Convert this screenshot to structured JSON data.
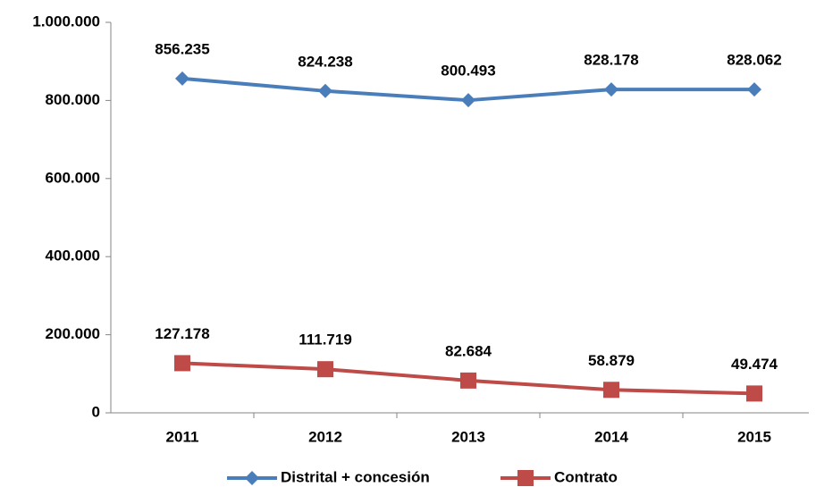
{
  "chart_data": {
    "type": "line",
    "categories": [
      "2011",
      "2012",
      "2013",
      "2014",
      "2015"
    ],
    "series": [
      {
        "name": "Distrital + concesión",
        "color": "#4a7ebb",
        "marker": "diamond",
        "values": [
          856235,
          824238,
          800493,
          828178,
          828062
        ],
        "value_labels": [
          "856.235",
          "824.238",
          "800.493",
          "828.178",
          "828.062"
        ]
      },
      {
        "name": "Contrato",
        "color": "#be4b48",
        "marker": "square",
        "values": [
          127178,
          111719,
          82684,
          58879,
          49474
        ],
        "value_labels": [
          "127.178",
          "111.719",
          "82.684",
          "58.879",
          "49.474"
        ]
      }
    ],
    "ylim": [
      0,
      1000000
    ],
    "yticks": [
      0,
      {
        "value": 200000,
        "label": "200.000"
      },
      {
        "value": 400000,
        "label": "400.000"
      },
      {
        "value": 600000,
        "label": "600.000"
      },
      {
        "value": 800000,
        "label": "800.000"
      },
      {
        "value": 1000000,
        "label": "1.000.000"
      }
    ],
    "grid": false,
    "legend": "bottom"
  }
}
